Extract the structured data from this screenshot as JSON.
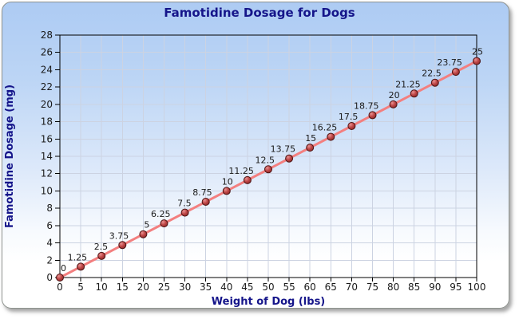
{
  "chart_data": {
    "type": "line",
    "title": "Famotidine Dosage for Dogs",
    "xlabel": "Weight of Dog (lbs)",
    "ylabel": "Famotidine Dosage (mg)",
    "xlim": [
      0,
      100
    ],
    "ylim": [
      0,
      28
    ],
    "grid": true,
    "legend": "none",
    "x": [
      0,
      5,
      10,
      15,
      20,
      25,
      30,
      35,
      40,
      45,
      50,
      55,
      60,
      65,
      70,
      75,
      80,
      85,
      90,
      95,
      100
    ],
    "values": [
      0,
      1.25,
      2.5,
      3.75,
      5,
      6.25,
      7.5,
      8.75,
      10,
      11.25,
      12.5,
      13.75,
      15,
      16.25,
      17.5,
      18.75,
      20,
      21.25,
      22.5,
      23.75,
      25
    ],
    "point_labels": [
      "0",
      "1.25",
      "2.5",
      "3.75",
      "5",
      "6.25",
      "7.5",
      "8.75",
      "10",
      "11.25",
      "12.5",
      "13.75",
      "15",
      "16.25",
      "17.5",
      "18.75",
      "20",
      "21.25",
      "22.5",
      "23.75",
      "25"
    ],
    "x_ticks": [
      0,
      5,
      10,
      15,
      20,
      25,
      30,
      35,
      40,
      45,
      50,
      55,
      60,
      65,
      70,
      75,
      80,
      85,
      90,
      95,
      100
    ],
    "y_ticks": [
      0,
      2,
      4,
      6,
      8,
      10,
      12,
      14,
      16,
      18,
      20,
      22,
      24,
      26,
      28
    ],
    "colors": {
      "background_top": "#adcbf3",
      "background_bottom": "#ffffff",
      "line": "#f37f7f",
      "marker_light": "#e89292",
      "marker_mid": "#c04848",
      "marker_dark": "#7e1f1f",
      "marker_stroke": "#4d1414",
      "grid": "#ccd3e2",
      "axis": "#000000",
      "title": "#15158a",
      "tick_text": "#1a1a1a"
    }
  }
}
